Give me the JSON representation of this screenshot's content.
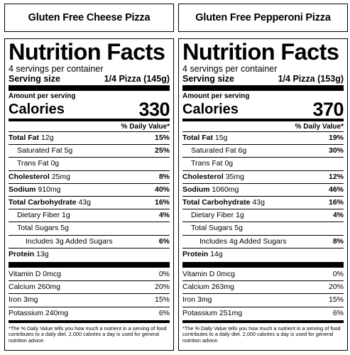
{
  "labels": [
    {
      "product_title": "Gluten Free Cheese Pizza",
      "heading": "Nutrition Facts",
      "servings_per_container": "4 servings per container",
      "serving_size_label": "Serving size",
      "serving_size_value": "1/4 Pizza (145g)",
      "amount_per_serving": "Amount per serving",
      "calories_label": "Calories",
      "calories_value": "330",
      "dv_header": "% Daily Value*",
      "total_fat_label": "Total Fat",
      "total_fat_amount": "12g",
      "total_fat_pct": "15%",
      "sat_fat_label": "Saturated Fat 5g",
      "sat_fat_pct": "25%",
      "trans_fat_label": "Trans Fat 0g",
      "cholesterol_label": "Cholesterol",
      "cholesterol_amount": "25mg",
      "cholesterol_pct": "8%",
      "sodium_label": "Sodium",
      "sodium_amount": "910mg",
      "sodium_pct": "40%",
      "carb_label": "Total Carbohydrate",
      "carb_amount": "43g",
      "carb_pct": "16%",
      "fiber_label": "Dietary Fiber 1g",
      "fiber_pct": "4%",
      "sugars_label": "Total Sugars 5g",
      "added_sugars_label": "Includes 3g Added Sugars",
      "added_sugars_pct": "6%",
      "protein_label": "Protein",
      "protein_amount": "13g",
      "vitd_label": "Vitamin D 0mcg",
      "vitd_pct": "0%",
      "calcium_label": "Calcium 260mg",
      "calcium_pct": "20%",
      "iron_label": "Iron 3mg",
      "iron_pct": "15%",
      "potassium_label": "Potassium 240mg",
      "potassium_pct": "6%",
      "footnote": "*The % Daily Value tells you how much a nutrient in a serving of food contributes to a daily diet. 2,000 calories a day is used for general nutrition advice."
    },
    {
      "product_title": "Gluten Free Pepperoni Pizza",
      "heading": "Nutrition Facts",
      "servings_per_container": "4 servings per container",
      "serving_size_label": "Serving size",
      "serving_size_value": "1/4 Pizza (153g)",
      "amount_per_serving": "Amount per serving",
      "calories_label": "Calories",
      "calories_value": "370",
      "dv_header": "% Daily Value*",
      "total_fat_label": "Total Fat",
      "total_fat_amount": "15g",
      "total_fat_pct": "19%",
      "sat_fat_label": "Saturated Fat 6g",
      "sat_fat_pct": "30%",
      "trans_fat_label": "Trans Fat 0g",
      "cholesterol_label": "Cholesterol",
      "cholesterol_amount": "35mg",
      "cholesterol_pct": "12%",
      "sodium_label": "Sodium",
      "sodium_amount": "1060mg",
      "sodium_pct": "46%",
      "carb_label": "Total Carbohydrate",
      "carb_amount": "43g",
      "carb_pct": "16%",
      "fiber_label": "Dietary Fiber 1g",
      "fiber_pct": "4%",
      "sugars_label": "Total Sugars 5g",
      "added_sugars_label": "Includes 4g Added Sugars",
      "added_sugars_pct": "8%",
      "protein_label": "Protein",
      "protein_amount": "14g",
      "vitd_label": "Vitamin D 0mcg",
      "vitd_pct": "0%",
      "calcium_label": "Calcium 263mg",
      "calcium_pct": "20%",
      "iron_label": "Iron 3mg",
      "iron_pct": "15%",
      "potassium_label": "Potassium 251mg",
      "potassium_pct": "6%",
      "footnote": "*The % Daily Value tells you how much a nutrient in a serving of food contributes to a daily diet. 2,000 calories a day is used for general nutrition advice."
    }
  ]
}
